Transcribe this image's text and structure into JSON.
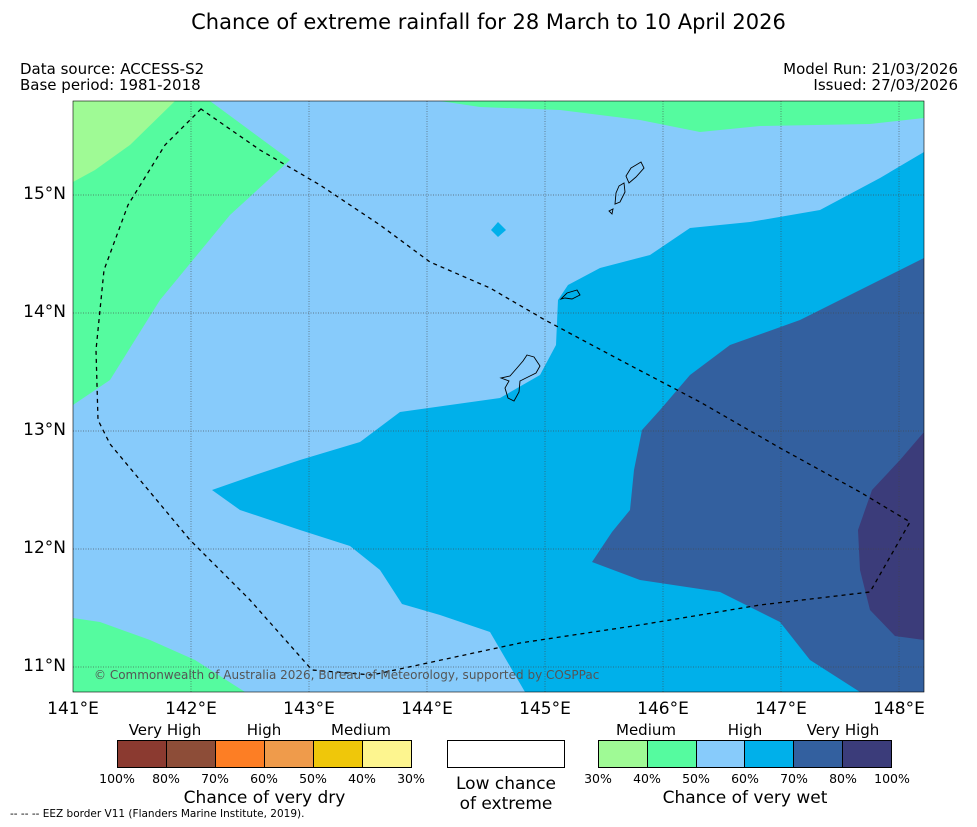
{
  "title": "Chance of extreme rainfall for 28 March to 10 April 2026",
  "data_source": "Data source: ACCESS-S2",
  "base_period": "Base period: 1981-2018",
  "model_run": "Model Run: 21/03/2026",
  "issued": "Issued: 27/03/2026",
  "map": {
    "copyright": "© Commonwealth of Australia 2026, Bureau of Meteorology, supported by COSPPac",
    "lat_labels": [
      "15°N",
      "14°N",
      "13°N",
      "12°N",
      "11°N"
    ],
    "lon_labels": [
      "141°E",
      "142°E",
      "143°E",
      "144°E",
      "145°E",
      "146°E",
      "147°E",
      "148°E"
    ],
    "colors": {
      "wet_30_40": "#9ffa95",
      "wet_40_50": "#55fb9f",
      "wet_50_60": "#87cbfb",
      "wet_60_70": "#00b0ea",
      "wet_70_80": "#33609f",
      "wet_80_100": "#3b3c7a",
      "eez_border": "#000000"
    }
  },
  "legend": {
    "dry": {
      "categories": [
        "Very High",
        "High",
        "Medium"
      ],
      "colors": [
        "#8b3a30",
        "#8d4d38",
        "#fd7e24",
        "#ef9b4b",
        "#efc70a",
        "#fdf58f"
      ],
      "percents": [
        "100%",
        "80%",
        "70%",
        "60%",
        "50%",
        "40%",
        "30%"
      ],
      "caption": "Chance of very dry"
    },
    "low": {
      "caption_line1": "Low chance",
      "caption_line2": "of extreme"
    },
    "wet": {
      "categories": [
        "Medium",
        "High",
        "Very High"
      ],
      "colors": [
        "#9ffa95",
        "#55fb9f",
        "#87cbfb",
        "#00b0ea",
        "#33609f",
        "#3b3c7a"
      ],
      "percents": [
        "30%",
        "40%",
        "50%",
        "60%",
        "70%",
        "80%",
        "100%"
      ],
      "caption": "Chance of very wet"
    }
  },
  "footnote": "--  --  -- EEZ border V11 (Flanders Marine Institute, 2019)."
}
